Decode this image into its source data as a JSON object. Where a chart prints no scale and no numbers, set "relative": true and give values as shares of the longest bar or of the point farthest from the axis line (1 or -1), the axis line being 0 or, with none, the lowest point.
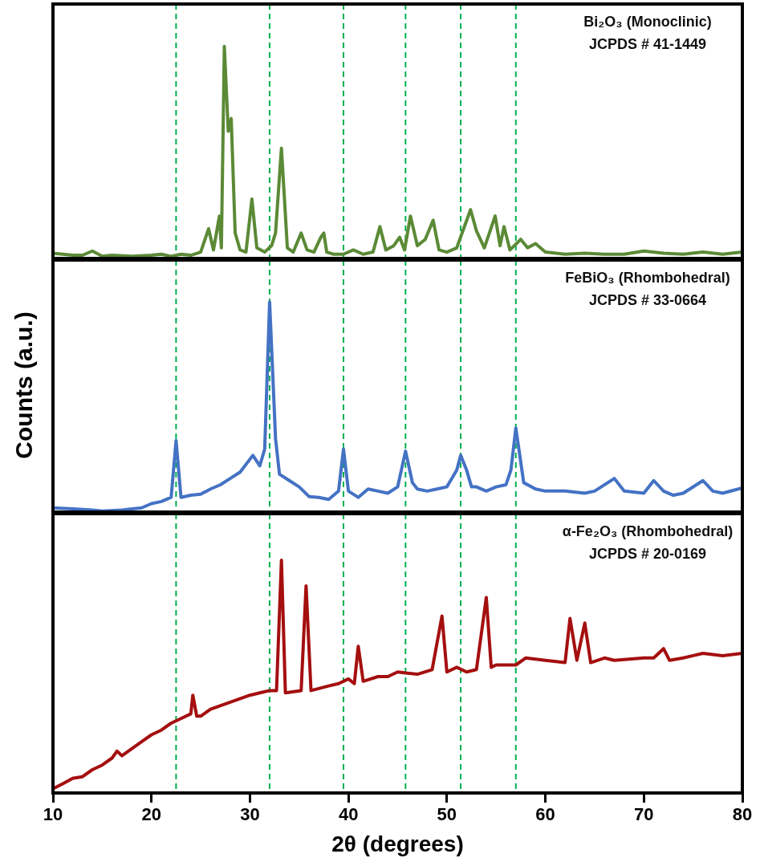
{
  "chart_data": [
    {
      "type": "line",
      "relative": true,
      "xlim": [
        10,
        80
      ],
      "xticks": [
        10,
        20,
        30,
        40,
        50,
        60,
        70,
        80
      ],
      "tick_labels": false,
      "grid": false,
      "marker": "none",
      "line_style": "solid",
      "annotations": [
        "Bi₂O₃ (Monoclinic)",
        "JCPDS # 41-1449"
      ],
      "ref_lines": [
        {
          "axis": "x",
          "value": 22.5,
          "color": "#00b050",
          "line_style": "dashed"
        },
        {
          "axis": "x",
          "value": 32,
          "color": "#00b050",
          "line_style": "dashed"
        },
        {
          "axis": "x",
          "value": 39.5,
          "color": "#00b050",
          "line_style": "dashed"
        },
        {
          "axis": "x",
          "value": 45.8,
          "color": "#00b050",
          "line_style": "dashed"
        },
        {
          "axis": "x",
          "value": 51.4,
          "color": "#00b050",
          "line_style": "dashed"
        },
        {
          "axis": "x",
          "value": 57,
          "color": "#00b050",
          "line_style": "dashed"
        }
      ],
      "series": [
        {
          "color": "#5b8a36",
          "x": [
            10,
            11,
            12,
            13,
            14,
            15,
            16,
            18,
            20,
            21,
            22,
            23,
            24,
            25,
            25.8,
            26.3,
            26.9,
            27.1,
            27.4,
            27.8,
            28.1,
            28.5,
            29,
            29.6,
            30.2,
            30.7,
            31.5,
            32.2,
            32.6,
            33.2,
            33.8,
            34.4,
            35.2,
            35.8,
            36.5,
            37.2,
            37.5,
            37.8,
            38.5,
            39.5,
            40.5,
            41.5,
            42.5,
            43.2,
            43.8,
            44.6,
            45.2,
            45.7,
            46.3,
            47,
            47.8,
            48.6,
            49.2,
            50,
            51,
            52.4,
            53,
            53.8,
            54.9,
            55.4,
            55.8,
            56.4,
            57.5,
            58.2,
            59,
            60,
            62,
            64,
            66,
            68,
            70,
            72,
            74,
            76,
            78,
            80
          ],
          "values": [
            0.025,
            0.02,
            0.015,
            0.015,
            0.035,
            0.01,
            0.015,
            0.01,
            0.015,
            0.02,
            0.01,
            0.02,
            0.015,
            0.03,
            0.14,
            0.04,
            0.2,
            0.05,
            1.0,
            0.6,
            0.66,
            0.12,
            0.04,
            0.03,
            0.28,
            0.05,
            0.03,
            0.06,
            0.12,
            0.52,
            0.05,
            0.03,
            0.12,
            0.04,
            0.03,
            0.1,
            0.12,
            0.03,
            0.02,
            0.02,
            0.04,
            0.02,
            0.03,
            0.15,
            0.04,
            0.06,
            0.1,
            0.04,
            0.2,
            0.06,
            0.09,
            0.18,
            0.04,
            0.03,
            0.05,
            0.23,
            0.13,
            0.05,
            0.2,
            0.06,
            0.15,
            0.04,
            0.09,
            0.05,
            0.07,
            0.03,
            0.02,
            0.025,
            0.02,
            0.02,
            0.035,
            0.025,
            0.02,
            0.03,
            0.02,
            0.03
          ]
        }
      ]
    },
    {
      "type": "line",
      "relative": true,
      "xlim": [
        10,
        80
      ],
      "xticks": [
        10,
        20,
        30,
        40,
        50,
        60,
        70,
        80
      ],
      "tick_labels": false,
      "grid": false,
      "marker": "none",
      "line_style": "solid",
      "ylabel": "Counts (a.u.)",
      "annotations": [
        "FeBiO₃ (Rhombohedral)",
        "JCPDS # 33-0664"
      ],
      "ref_lines": [
        {
          "axis": "x",
          "value": 22.5,
          "color": "#00b050",
          "line_style": "dashed"
        },
        {
          "axis": "x",
          "value": 32,
          "color": "#00b050",
          "line_style": "dashed"
        },
        {
          "axis": "x",
          "value": 39.5,
          "color": "#00b050",
          "line_style": "dashed"
        },
        {
          "axis": "x",
          "value": 45.8,
          "color": "#00b050",
          "line_style": "dashed"
        },
        {
          "axis": "x",
          "value": 51.4,
          "color": "#00b050",
          "line_style": "dashed"
        },
        {
          "axis": "x",
          "value": 57,
          "color": "#00b050",
          "line_style": "dashed"
        }
      ],
      "series": [
        {
          "color": "#4472c4",
          "x": [
            10,
            12,
            14,
            15,
            17,
            19,
            20,
            21,
            22,
            22.5,
            23,
            24,
            25,
            26,
            27,
            28,
            29,
            30.3,
            31,
            31.5,
            32,
            32.6,
            33,
            34,
            35,
            36,
            37,
            38,
            39,
            39.5,
            40,
            41,
            42,
            43,
            44,
            45,
            45.8,
            46.5,
            47,
            48,
            49,
            50,
            51,
            51.4,
            52,
            52.5,
            53,
            54,
            55,
            56,
            56.5,
            57,
            57.8,
            59,
            60,
            62,
            64,
            65,
            67,
            68,
            70,
            71,
            72,
            73,
            74,
            76,
            77,
            78,
            80
          ],
          "values": [
            0.02,
            0.015,
            0.01,
            0.005,
            0.01,
            0.02,
            0.04,
            0.05,
            0.07,
            0.34,
            0.07,
            0.08,
            0.085,
            0.11,
            0.13,
            0.16,
            0.19,
            0.27,
            0.22,
            0.3,
            1.0,
            0.35,
            0.18,
            0.15,
            0.12,
            0.074,
            0.07,
            0.06,
            0.1,
            0.3,
            0.1,
            0.07,
            0.11,
            0.1,
            0.09,
            0.12,
            0.29,
            0.14,
            0.11,
            0.1,
            0.11,
            0.12,
            0.2,
            0.27,
            0.2,
            0.12,
            0.12,
            0.1,
            0.12,
            0.13,
            0.2,
            0.4,
            0.14,
            0.11,
            0.1,
            0.1,
            0.09,
            0.1,
            0.16,
            0.1,
            0.09,
            0.15,
            0.1,
            0.08,
            0.09,
            0.15,
            0.1,
            0.09,
            0.115
          ]
        }
      ]
    },
    {
      "type": "line",
      "relative": true,
      "xlim": [
        10,
        80
      ],
      "xticks": [
        10,
        20,
        30,
        40,
        50,
        60,
        70,
        80
      ],
      "tick_labels": "x",
      "grid": false,
      "marker": "none",
      "line_style": "solid",
      "xlabel": "2θ (degrees)",
      "annotations": [
        "α-Fe₂O₃ (Rhombohedral)",
        "JCPDS # 20-0169"
      ],
      "ref_lines": [
        {
          "axis": "x",
          "value": 22.5,
          "color": "#00b050",
          "line_style": "dashed"
        },
        {
          "axis": "x",
          "value": 32,
          "color": "#00b050",
          "line_style": "dashed"
        },
        {
          "axis": "x",
          "value": 39.5,
          "color": "#00b050",
          "line_style": "dashed"
        },
        {
          "axis": "x",
          "value": 45.8,
          "color": "#00b050",
          "line_style": "dashed"
        },
        {
          "axis": "x",
          "value": 51.4,
          "color": "#00b050",
          "line_style": "dashed"
        },
        {
          "axis": "x",
          "value": 57,
          "color": "#00b050",
          "line_style": "dashed"
        }
      ],
      "series": [
        {
          "color": "#a50f0f",
          "x": [
            10,
            11,
            12,
            13,
            14,
            15,
            16,
            16.5,
            17,
            18,
            19,
            20,
            21,
            22,
            23,
            24,
            24.2,
            24.6,
            25,
            26,
            28,
            30,
            31,
            32,
            32.7,
            33.2,
            33.6,
            35.2,
            35.7,
            36.2,
            38,
            39,
            40,
            40.6,
            41,
            41.5,
            43,
            44,
            45,
            47,
            48.5,
            49.5,
            50,
            51,
            52,
            53,
            54,
            54.5,
            55,
            57,
            58,
            60,
            62,
            62.5,
            63.2,
            64,
            64.6,
            66,
            67,
            70,
            71,
            72,
            72.6,
            74,
            75,
            76,
            78,
            80
          ],
          "values": [
            0.018,
            0.04,
            0.063,
            0.07,
            0.1,
            0.12,
            0.15,
            0.18,
            0.16,
            0.19,
            0.22,
            0.25,
            0.27,
            0.3,
            0.32,
            0.34,
            0.42,
            0.33,
            0.33,
            0.36,
            0.39,
            0.42,
            0.43,
            0.44,
            0.44,
            1.0,
            0.43,
            0.44,
            0.89,
            0.44,
            0.46,
            0.47,
            0.49,
            0.47,
            0.63,
            0.48,
            0.5,
            0.5,
            0.52,
            0.51,
            0.53,
            0.76,
            0.52,
            0.54,
            0.52,
            0.53,
            0.84,
            0.54,
            0.55,
            0.55,
            0.58,
            0.57,
            0.56,
            0.75,
            0.57,
            0.73,
            0.56,
            0.58,
            0.57,
            0.58,
            0.58,
            0.62,
            0.57,
            0.58,
            0.59,
            0.6,
            0.59,
            0.6
          ]
        }
      ]
    }
  ]
}
